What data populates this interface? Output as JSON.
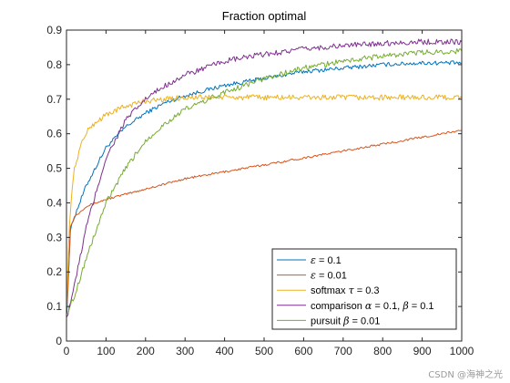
{
  "chart_data": {
    "type": "line",
    "title": "Fraction optimal",
    "xlabel": "",
    "ylabel": "",
    "xlim": [
      0,
      1000
    ],
    "ylim": [
      0,
      0.9
    ],
    "x_ticks": [
      0,
      100,
      200,
      300,
      400,
      500,
      600,
      700,
      800,
      900,
      1000
    ],
    "y_ticks": [
      0,
      0.1,
      0.2,
      0.3,
      0.4,
      0.5,
      0.6,
      0.7,
      0.8,
      0.9
    ],
    "x_tick_labels": [
      "0",
      "100",
      "200",
      "300",
      "400",
      "500",
      "600",
      "700",
      "800",
      "900",
      "1000"
    ],
    "y_tick_labels": [
      "0",
      "0.1",
      "0.2",
      "0.3",
      "0.4",
      "0.5",
      "0.6",
      "0.7",
      "0.8",
      "0.9"
    ],
    "grid": false,
    "legend_position": "bottom-right",
    "series": [
      {
        "name": "ε = 0.1",
        "color": "#0072bd",
        "x": [
          1,
          10,
          20,
          50,
          100,
          150,
          200,
          250,
          300,
          400,
          500,
          600,
          700,
          800,
          900,
          1000
        ],
        "y": [
          0.08,
          0.32,
          0.36,
          0.45,
          0.56,
          0.62,
          0.66,
          0.69,
          0.71,
          0.74,
          0.76,
          0.78,
          0.79,
          0.8,
          0.805,
          0.805
        ]
      },
      {
        "name": "ε = 0.01",
        "color": "#d95319",
        "x": [
          1,
          10,
          20,
          50,
          100,
          150,
          200,
          300,
          400,
          500,
          600,
          700,
          800,
          900,
          1000
        ],
        "y": [
          0.09,
          0.33,
          0.36,
          0.39,
          0.41,
          0.425,
          0.44,
          0.47,
          0.49,
          0.51,
          0.53,
          0.55,
          0.57,
          0.59,
          0.61
        ]
      },
      {
        "name": "softmax τ = 0.3",
        "color": "#edb120",
        "x": [
          1,
          5,
          10,
          20,
          40,
          60,
          100,
          150,
          200,
          250,
          300,
          400,
          500,
          600,
          700,
          800,
          900,
          1000
        ],
        "y": [
          0.1,
          0.28,
          0.38,
          0.5,
          0.58,
          0.62,
          0.655,
          0.68,
          0.695,
          0.7,
          0.705,
          0.705,
          0.705,
          0.705,
          0.705,
          0.705,
          0.705,
          0.705
        ]
      },
      {
        "name": "comparison α = 0.1, β = 0.1",
        "color": "#7e2f8e",
        "x": [
          1,
          20,
          50,
          100,
          150,
          200,
          250,
          300,
          400,
          500,
          600,
          700,
          800,
          900,
          1000
        ],
        "y": [
          0.07,
          0.16,
          0.33,
          0.53,
          0.64,
          0.7,
          0.74,
          0.77,
          0.81,
          0.83,
          0.845,
          0.855,
          0.862,
          0.866,
          0.866
        ]
      },
      {
        "name": "pursuit β = 0.01",
        "color": "#77ac30",
        "x": [
          1,
          20,
          50,
          100,
          150,
          200,
          250,
          300,
          400,
          500,
          600,
          700,
          800,
          900,
          1000
        ],
        "y": [
          0.08,
          0.13,
          0.24,
          0.4,
          0.5,
          0.58,
          0.63,
          0.67,
          0.72,
          0.76,
          0.79,
          0.81,
          0.825,
          0.835,
          0.84
        ]
      }
    ]
  },
  "legend_entries": [
    {
      "prefix": "",
      "sym1": "ε",
      "mid": " = 0.1",
      "sym2": "",
      "suffix": ""
    },
    {
      "prefix": "",
      "sym1": "ε",
      "mid": " = 0.01",
      "sym2": "",
      "suffix": ""
    },
    {
      "prefix": "softmax ",
      "sym1": "τ",
      "mid": " = 0.3",
      "sym2": "",
      "suffix": ""
    },
    {
      "prefix": "comparison ",
      "sym1": "α",
      "mid": " = 0.1, ",
      "sym2": "β",
      "suffix": " = 0.1"
    },
    {
      "prefix": "pursuit ",
      "sym1": "β",
      "mid": " = 0.01",
      "sym2": "",
      "suffix": ""
    }
  ],
  "watermark": "CSDN @海神之光"
}
